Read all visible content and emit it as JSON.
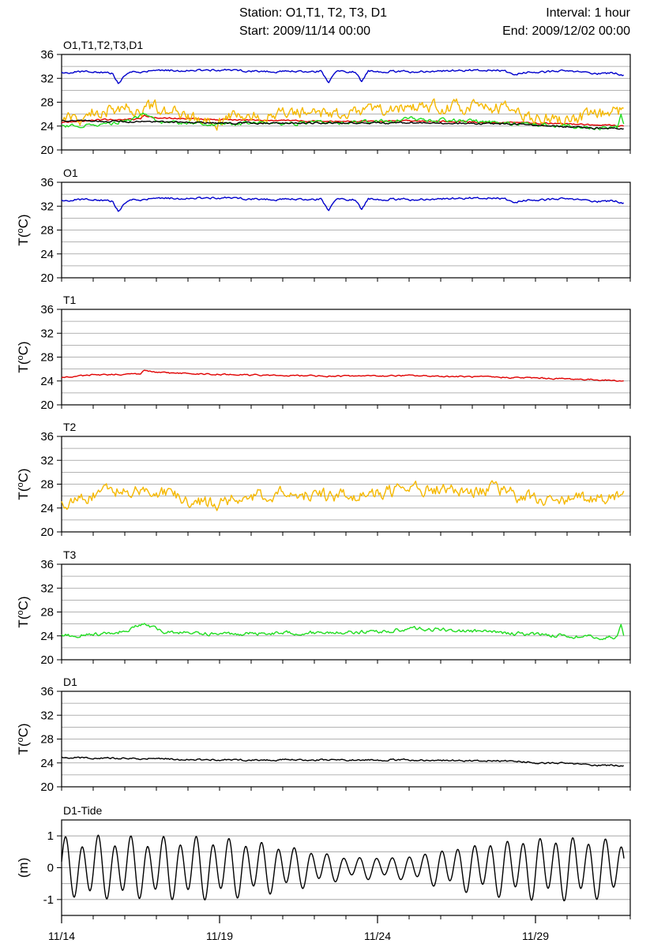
{
  "header": {
    "station": "Station: O1,T1, T2, T3, D1",
    "start": "Start: 2009/11/14 00:00",
    "interval": "Interval: 1 hour",
    "end": "End: 2009/12/02 00:00"
  },
  "colors": {
    "O1": "#0000cc",
    "T1": "#e00000",
    "T2": "#f5b800",
    "T3": "#22dd22",
    "D1": "#000000"
  },
  "chart_data": [
    {
      "type": "line",
      "title": "O1,T1,T2,T3,D1",
      "ylabel": "",
      "ylim": [
        20,
        36
      ],
      "yticks": [
        20,
        24,
        28,
        32,
        36
      ],
      "xlim": [
        0,
        18
      ],
      "grid": true,
      "series": [
        {
          "name": "O1",
          "color": "#0000cc",
          "base": 33.1,
          "noise": 0.15,
          "points": [
            [
              0,
              32.9
            ],
            [
              1,
              33.2
            ],
            [
              1.6,
              32.8
            ],
            [
              1.8,
              31.2
            ],
            [
              2.1,
              33.0
            ],
            [
              3,
              33.3
            ],
            [
              5,
              33.4
            ],
            [
              7,
              33.1
            ],
            [
              8.2,
              33.2
            ],
            [
              8.45,
              31.3
            ],
            [
              8.7,
              33.2
            ],
            [
              9.3,
              33.1
            ],
            [
              9.5,
              31.5
            ],
            [
              9.7,
              33.2
            ],
            [
              11,
              33.1
            ],
            [
              13,
              33.4
            ],
            [
              14,
              33.3
            ],
            [
              14.3,
              32.6
            ],
            [
              14.6,
              33.0
            ],
            [
              16,
              33.2
            ],
            [
              17,
              32.8
            ],
            [
              17.5,
              32.9
            ],
            [
              17.8,
              32.6
            ]
          ]
        },
        {
          "name": "T1",
          "color": "#e00000",
          "base": 24.9,
          "noise": 0.1,
          "points": [
            [
              0,
              24.6
            ],
            [
              1,
              25.0
            ],
            [
              2.5,
              25.2
            ],
            [
              2.6,
              25.8
            ],
            [
              3,
              25.4
            ],
            [
              5,
              25.1
            ],
            [
              7,
              24.9
            ],
            [
              9,
              24.8
            ],
            [
              11,
              24.9
            ],
            [
              13,
              24.7
            ],
            [
              15,
              24.5
            ],
            [
              17,
              24.2
            ],
            [
              17.8,
              24.0
            ]
          ]
        },
        {
          "name": "T2",
          "color": "#f5b800",
          "base": 26.0,
          "noise": 0.9,
          "points": [
            [
              0,
              24.8
            ],
            [
              0.5,
              25.0
            ],
            [
              1,
              26.3
            ],
            [
              2,
              27.2
            ],
            [
              3,
              27.0
            ],
            [
              3.5,
              26.5
            ],
            [
              4,
              25.2
            ],
            [
              5,
              24.7
            ],
            [
              5.5,
              25.8
            ],
            [
              6,
              26.0
            ],
            [
              7,
              26.3
            ],
            [
              9,
              26.0
            ],
            [
              10,
              26.6
            ],
            [
              11,
              27.0
            ],
            [
              12,
              27.3
            ],
            [
              13,
              27.0
            ],
            [
              14,
              27.0
            ],
            [
              14.5,
              26.0
            ],
            [
              15,
              25.2
            ],
            [
              16,
              25.3
            ],
            [
              17,
              25.6
            ],
            [
              17.8,
              26.6
            ]
          ]
        },
        {
          "name": "T3",
          "color": "#22dd22",
          "base": 24.5,
          "noise": 0.25,
          "points": [
            [
              0,
              24.0
            ],
            [
              1,
              24.2
            ],
            [
              1.8,
              24.6
            ],
            [
              2.2,
              25.3
            ],
            [
              2.6,
              26.0
            ],
            [
              3.2,
              24.7
            ],
            [
              5,
              24.3
            ],
            [
              7,
              24.5
            ],
            [
              9,
              24.6
            ],
            [
              10.5,
              24.8
            ],
            [
              11,
              25.3
            ],
            [
              12,
              25.0
            ],
            [
              13,
              24.8
            ],
            [
              14,
              24.5
            ],
            [
              15,
              24.3
            ],
            [
              16,
              24.0
            ],
            [
              17,
              23.7
            ],
            [
              17.6,
              23.8
            ],
            [
              17.7,
              26.0
            ],
            [
              17.8,
              23.9
            ]
          ]
        },
        {
          "name": "D1",
          "color": "#000000",
          "base": 24.6,
          "noise": 0.12,
          "points": [
            [
              0,
              24.9
            ],
            [
              3,
              24.7
            ],
            [
              5,
              24.5
            ],
            [
              8,
              24.5
            ],
            [
              11,
              24.5
            ],
            [
              13,
              24.4
            ],
            [
              14.5,
              24.3
            ],
            [
              15,
              24.0
            ],
            [
              16,
              23.9
            ],
            [
              17,
              23.6
            ],
            [
              17.8,
              23.6
            ]
          ]
        }
      ]
    },
    {
      "type": "line",
      "title": "O1",
      "ylabel": "T(oC)",
      "ylim": [
        20,
        36
      ],
      "yticks": [
        20,
        24,
        28,
        32,
        36
      ],
      "xlim": [
        0,
        18
      ],
      "grid": true,
      "series": [
        {
          "color": "#0000cc",
          "base": 33.1,
          "noise": 0.15,
          "points": [
            [
              0,
              32.9
            ],
            [
              1,
              33.2
            ],
            [
              1.6,
              32.8
            ],
            [
              1.8,
              31.2
            ],
            [
              2.1,
              33.0
            ],
            [
              3,
              33.3
            ],
            [
              5,
              33.4
            ],
            [
              7,
              33.1
            ],
            [
              8.2,
              33.2
            ],
            [
              8.45,
              31.3
            ],
            [
              8.7,
              33.2
            ],
            [
              9.3,
              33.1
            ],
            [
              9.5,
              31.5
            ],
            [
              9.7,
              33.2
            ],
            [
              11,
              33.1
            ],
            [
              13,
              33.4
            ],
            [
              14,
              33.3
            ],
            [
              14.3,
              32.6
            ],
            [
              14.6,
              33.0
            ],
            [
              16,
              33.2
            ],
            [
              17,
              32.8
            ],
            [
              17.5,
              32.9
            ],
            [
              17.8,
              32.6
            ]
          ]
        }
      ]
    },
    {
      "type": "line",
      "title": "T1",
      "ylabel": "T(oC)",
      "ylim": [
        20,
        36
      ],
      "yticks": [
        20,
        24,
        28,
        32,
        36
      ],
      "xlim": [
        0,
        18
      ],
      "grid": true,
      "series": [
        {
          "color": "#e00000",
          "base": 24.9,
          "noise": 0.1,
          "points": [
            [
              0,
              24.6
            ],
            [
              1,
              25.0
            ],
            [
              2.5,
              25.2
            ],
            [
              2.6,
              25.8
            ],
            [
              3,
              25.4
            ],
            [
              5,
              25.1
            ],
            [
              7,
              24.9
            ],
            [
              9,
              24.8
            ],
            [
              11,
              24.9
            ],
            [
              13,
              24.7
            ],
            [
              15,
              24.5
            ],
            [
              17,
              24.2
            ],
            [
              17.8,
              24.0
            ]
          ]
        }
      ]
    },
    {
      "type": "line",
      "title": "T2",
      "ylabel": "T(oC)",
      "ylim": [
        20,
        36
      ],
      "yticks": [
        20,
        24,
        28,
        32,
        36
      ],
      "xlim": [
        0,
        18
      ],
      "grid": true,
      "series": [
        {
          "color": "#f5b800",
          "base": 26.0,
          "noise": 0.9,
          "points": [
            [
              0,
              24.8
            ],
            [
              0.5,
              25.0
            ],
            [
              1,
              26.3
            ],
            [
              2,
              27.2
            ],
            [
              3,
              27.0
            ],
            [
              3.5,
              26.5
            ],
            [
              4,
              25.2
            ],
            [
              5,
              24.7
            ],
            [
              5.5,
              25.8
            ],
            [
              6,
              26.0
            ],
            [
              7,
              26.3
            ],
            [
              9,
              26.0
            ],
            [
              10,
              26.6
            ],
            [
              11,
              27.0
            ],
            [
              12,
              27.3
            ],
            [
              13,
              27.0
            ],
            [
              14,
              27.0
            ],
            [
              14.5,
              26.0
            ],
            [
              15,
              25.2
            ],
            [
              16,
              25.3
            ],
            [
              17,
              25.6
            ],
            [
              17.8,
              26.6
            ]
          ]
        }
      ]
    },
    {
      "type": "line",
      "title": "T3",
      "ylabel": "T(oC)",
      "ylim": [
        20,
        36
      ],
      "yticks": [
        20,
        24,
        28,
        32,
        36
      ],
      "xlim": [
        0,
        18
      ],
      "grid": true,
      "series": [
        {
          "color": "#22dd22",
          "base": 24.5,
          "noise": 0.25,
          "points": [
            [
              0,
              24.0
            ],
            [
              1,
              24.2
            ],
            [
              1.8,
              24.6
            ],
            [
              2.2,
              25.3
            ],
            [
              2.6,
              26.0
            ],
            [
              3.2,
              24.7
            ],
            [
              5,
              24.3
            ],
            [
              7,
              24.5
            ],
            [
              9,
              24.6
            ],
            [
              10.5,
              24.8
            ],
            [
              11,
              25.3
            ],
            [
              12,
              25.0
            ],
            [
              13,
              24.8
            ],
            [
              14,
              24.5
            ],
            [
              15,
              24.3
            ],
            [
              16,
              24.0
            ],
            [
              17,
              23.7
            ],
            [
              17.6,
              23.8
            ],
            [
              17.7,
              26.0
            ],
            [
              17.8,
              23.9
            ]
          ]
        }
      ]
    },
    {
      "type": "line",
      "title": "D1",
      "ylabel": "T(oC)",
      "ylim": [
        20,
        36
      ],
      "yticks": [
        20,
        24,
        28,
        32,
        36
      ],
      "xlim": [
        0,
        18
      ],
      "grid": true,
      "series": [
        {
          "color": "#000000",
          "base": 24.6,
          "noise": 0.12,
          "points": [
            [
              0,
              24.9
            ],
            [
              3,
              24.7
            ],
            [
              5,
              24.5
            ],
            [
              8,
              24.5
            ],
            [
              11,
              24.5
            ],
            [
              13,
              24.4
            ],
            [
              14.5,
              24.3
            ],
            [
              15,
              24.0
            ],
            [
              16,
              23.9
            ],
            [
              17,
              23.6
            ],
            [
              17.8,
              23.6
            ]
          ]
        }
      ]
    },
    {
      "type": "line",
      "title": "D1-Tide",
      "ylabel": "(m)",
      "ylim": [
        -1.5,
        1.5
      ],
      "yticks": [
        -1,
        0,
        1
      ],
      "xlim": [
        0,
        18
      ],
      "grid": true,
      "xticks": [
        0,
        5,
        10,
        15
      ],
      "xtick_labels": [
        "11/14",
        "11/19",
        "11/24",
        "11/29"
      ],
      "tide": {
        "period_days": 0.5175,
        "amplitude_peak": 0.85,
        "amplitude_neap": 0.3,
        "spring_days": [
          1.5,
          4.0,
          15.8
        ]
      },
      "series": [
        {
          "color": "#000000"
        }
      ]
    }
  ]
}
